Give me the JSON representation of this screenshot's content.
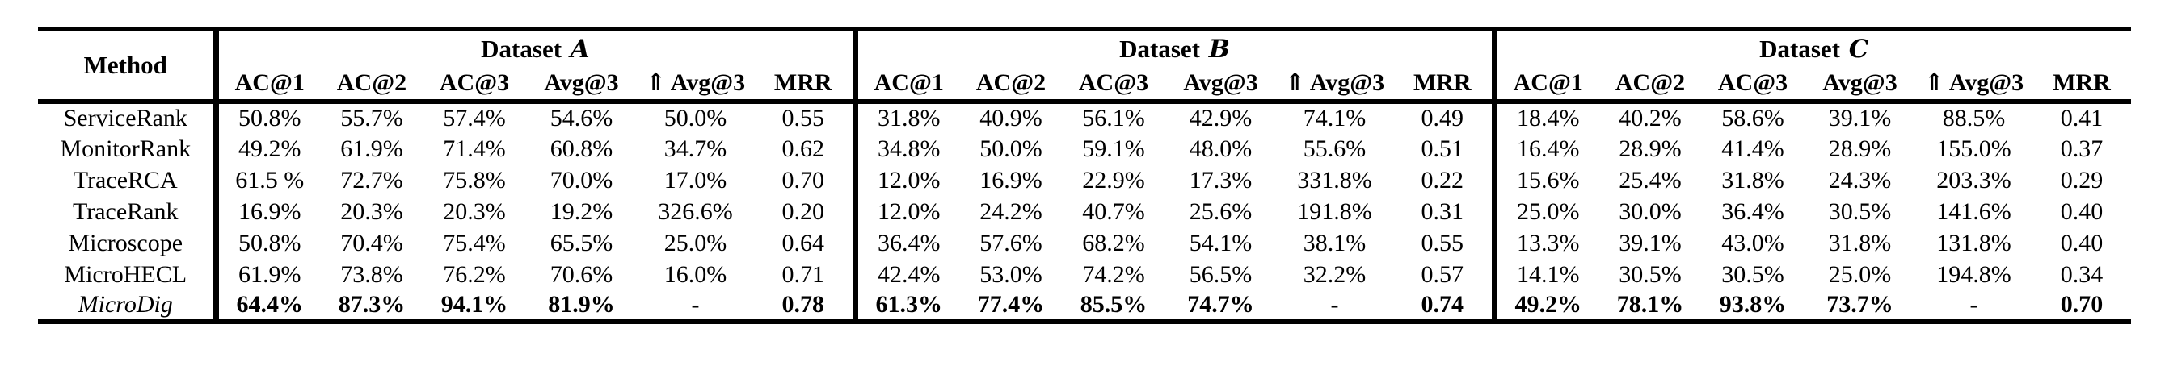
{
  "table": {
    "method_header": "Method",
    "column_headers": [
      "AC@1",
      "AC@2",
      "AC@3",
      "Avg@3",
      "⇑ Avg@3",
      "MRR"
    ],
    "groups": [
      {
        "title": "Dataset",
        "letter": "A"
      },
      {
        "title": "Dataset",
        "letter": "B"
      },
      {
        "title": "Dataset",
        "letter": "C"
      }
    ],
    "rows": [
      {
        "method": "ServiceRank",
        "style": "normal",
        "a": [
          "50.8%",
          "55.7%",
          "57.4%",
          "54.6%",
          "50.0%",
          "0.55"
        ],
        "b": [
          "31.8%",
          "40.9%",
          "56.1%",
          "42.9%",
          "74.1%",
          "0.49"
        ],
        "c": [
          "18.4%",
          "40.2%",
          "58.6%",
          "39.1%",
          "88.5%",
          "0.41"
        ]
      },
      {
        "method": "MonitorRank",
        "style": "normal",
        "a": [
          "49.2%",
          "61.9%",
          "71.4%",
          "60.8%",
          "34.7%",
          "0.62"
        ],
        "b": [
          "34.8%",
          "50.0%",
          "59.1%",
          "48.0%",
          "55.6%",
          "0.51"
        ],
        "c": [
          "16.4%",
          "28.9%",
          "41.4%",
          "28.9%",
          "155.0%",
          "0.37"
        ]
      },
      {
        "method": "TraceRCA",
        "style": "normal",
        "a": [
          "61.5 %",
          "72.7%",
          "75.8%",
          "70.0%",
          "17.0%",
          "0.70"
        ],
        "b": [
          "12.0%",
          "16.9%",
          "22.9%",
          "17.3%",
          "331.8%",
          "0.22"
        ],
        "c": [
          "15.6%",
          "25.4%",
          "31.8%",
          "24.3%",
          "203.3%",
          "0.29"
        ]
      },
      {
        "method": "TraceRank",
        "style": "normal",
        "a": [
          "16.9%",
          "20.3%",
          "20.3%",
          "19.2%",
          "326.6%",
          "0.20"
        ],
        "b": [
          "12.0%",
          "24.2%",
          "40.7%",
          "25.6%",
          "191.8%",
          "0.31"
        ],
        "c": [
          "25.0%",
          "30.0%",
          "36.4%",
          "30.5%",
          "141.6%",
          "0.40"
        ]
      },
      {
        "method": "Microscope",
        "style": "normal",
        "a": [
          "50.8%",
          "70.4%",
          "75.4%",
          "65.5%",
          "25.0%",
          "0.64"
        ],
        "b": [
          "36.4%",
          "57.6%",
          "68.2%",
          "54.1%",
          "38.1%",
          "0.55"
        ],
        "c": [
          "13.3%",
          "39.1%",
          "43.0%",
          "31.8%",
          "131.8%",
          "0.40"
        ]
      },
      {
        "method": "MicroHECL",
        "style": "normal",
        "a": [
          "61.9%",
          "73.8%",
          "76.2%",
          "70.6%",
          "16.0%",
          "0.71"
        ],
        "b": [
          "42.4%",
          "53.0%",
          "74.2%",
          "56.5%",
          "32.2%",
          "0.57"
        ],
        "c": [
          "14.1%",
          "30.5%",
          "30.5%",
          "25.0%",
          "194.8%",
          "0.34"
        ]
      },
      {
        "method": "MicroDig",
        "style": "proposed",
        "a": [
          "64.4%",
          "87.3%",
          "94.1%",
          "81.9%",
          "-",
          "0.78"
        ],
        "b": [
          "61.3%",
          "77.4%",
          "85.5%",
          "74.7%",
          "-",
          "0.74"
        ],
        "c": [
          "49.2%",
          "78.1%",
          "93.8%",
          "73.7%",
          "-",
          "0.70"
        ]
      }
    ]
  },
  "colors": {
    "text": "#000000",
    "background": "#ffffff",
    "rule": "#000000"
  }
}
